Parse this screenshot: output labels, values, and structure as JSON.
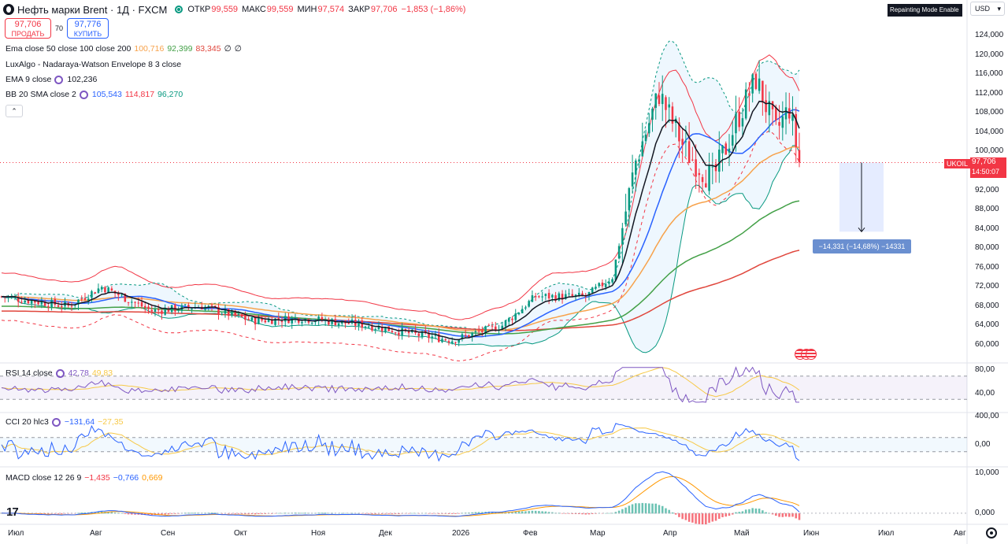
{
  "header": {
    "title": "Нефть марки Brent · 1Д · FXCM",
    "open_label": "ОТКР",
    "open": "99,559",
    "high_label": "МАКС",
    "high": "99,559",
    "low_label": "МИН",
    "low": "97,574",
    "close_label": "ЗАКР",
    "close": "97,706",
    "change": "−1,853 (−1,86%)"
  },
  "trade": {
    "sell_price": "97,706",
    "sell_label": "ПРОДАТЬ",
    "spread": "70",
    "buy_price": "97,776",
    "buy_label": "КУПИТЬ"
  },
  "legends": {
    "ema": {
      "name": "Ema close 50 close 100 close 200",
      "v1": "100,716",
      "v2": "92,399",
      "v3": "83,345",
      "v4": "∅",
      "v5": "∅"
    },
    "nw": {
      "name": "LuxAlgo - Nadaraya-Watson Envelope 8 3 close"
    },
    "ema9": {
      "name": "EMA 9 close",
      "v1": "102,236"
    },
    "bb": {
      "name": "BB 20 SMA close 2",
      "v1": "105,543",
      "v2": "114,817",
      "v3": "96,270"
    },
    "rsi": {
      "name": "RSI 14 close",
      "v1": "42,78",
      "v2": "49,83"
    },
    "cci": {
      "name": "CCI 20 hlc3",
      "v1": "−131,64",
      "v2": "−27,35"
    },
    "macd": {
      "name": "MACD close 12 26 9",
      "v1": "−1,435",
      "v2": "−0,766",
      "v3": "0,669"
    }
  },
  "collapse_label": "⌃",
  "repaint_badge": "Repainting Mode Enable",
  "currency": "USD",
  "symbol_tag": "UKOIL",
  "last_price": "97,706",
  "countdown": "14:50:07",
  "measure_label": "−14,331 (−14,68%) −14331",
  "price_axis": [
    "124,000",
    "120,000",
    "116,000",
    "112,000",
    "108,000",
    "104,000",
    "100,000",
    "92,000",
    "88,000",
    "84,000",
    "80,000",
    "76,000",
    "72,000",
    "68,000",
    "64,000",
    "60,000"
  ],
  "rsi_axis": [
    "80,00",
    "40,00"
  ],
  "cci_axis": [
    "400,00",
    "0,00"
  ],
  "macd_axis": [
    "10,000",
    "0,000"
  ],
  "time_axis": [
    "Июл",
    "Авг",
    "Сен",
    "Окт",
    "Ноя",
    "Дек",
    "2026",
    "Фев",
    "Мар",
    "Апр",
    "Май",
    "Июн",
    "Июл",
    "Авг"
  ],
  "colors": {
    "up": "#089981",
    "down": "#f23645",
    "ema9": "#131722",
    "ema50": "#f7a24b",
    "ema100": "#43a047",
    "ema200": "#e0463c",
    "bb": "#2962ff",
    "envelope": "#f23645",
    "rsi": "#7e57c2",
    "macd": "#2962ff",
    "signal": "#ff9800"
  },
  "chart_data": {
    "type": "candlestick",
    "symbol": "UKOIL",
    "ylim": [
      58,
      126
    ],
    "x": [
      "Июл",
      "Авг",
      "Сен",
      "Окт",
      "Ноя",
      "Дек",
      "2026",
      "Фев",
      "Мар",
      "Апр",
      "Май",
      "Июн"
    ],
    "close_approx": [
      68,
      69,
      67,
      66,
      64,
      63,
      62,
      66,
      72,
      100,
      112,
      97.706
    ],
    "series": [
      {
        "name": "EMA 9 close",
        "last": 102.236
      },
      {
        "name": "Ema close 50",
        "last": 100.716
      },
      {
        "name": "Ema close 100",
        "last": 92.399
      },
      {
        "name": "Ema close 200",
        "last": 83.345
      },
      {
        "name": "BB 20 SMA close 2",
        "basis": 105.543,
        "upper": 114.817,
        "lower": 96.27
      }
    ]
  }
}
